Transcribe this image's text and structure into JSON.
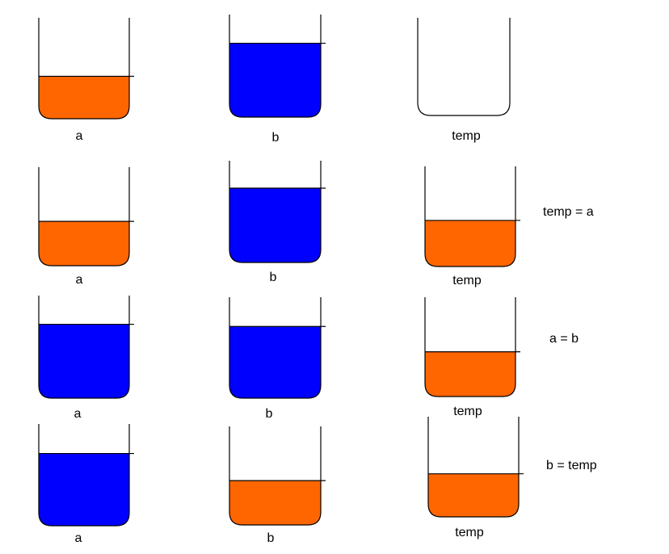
{
  "colors": {
    "orange": "#ff6600",
    "blue": "#0000ff",
    "outline": "#000000",
    "background": "#ffffff"
  },
  "rows": [
    {
      "step": "",
      "cups": [
        {
          "label": "a",
          "fill": "orange",
          "level": 0.42
        },
        {
          "label": "b",
          "fill": "blue",
          "level": 0.72
        },
        {
          "label": "temp",
          "fill": "none",
          "level": 0
        }
      ]
    },
    {
      "step": "temp = a",
      "cups": [
        {
          "label": "a",
          "fill": "orange",
          "level": 0.45
        },
        {
          "label": "b",
          "fill": "blue",
          "level": 0.73
        },
        {
          "label": "temp",
          "fill": "orange",
          "level": 0.46
        }
      ]
    },
    {
      "step": "a = b",
      "cups": [
        {
          "label": "a",
          "fill": "blue",
          "level": 0.72
        },
        {
          "label": "b",
          "fill": "blue",
          "level": 0.71
        },
        {
          "label": "temp",
          "fill": "orange",
          "level": 0.45
        }
      ]
    },
    {
      "step": "b = temp",
      "cups": [
        {
          "label": "a",
          "fill": "blue",
          "level": 0.71
        },
        {
          "label": "b",
          "fill": "orange",
          "level": 0.45
        },
        {
          "label": "temp",
          "fill": "orange",
          "level": 0.43
        }
      ]
    }
  ]
}
